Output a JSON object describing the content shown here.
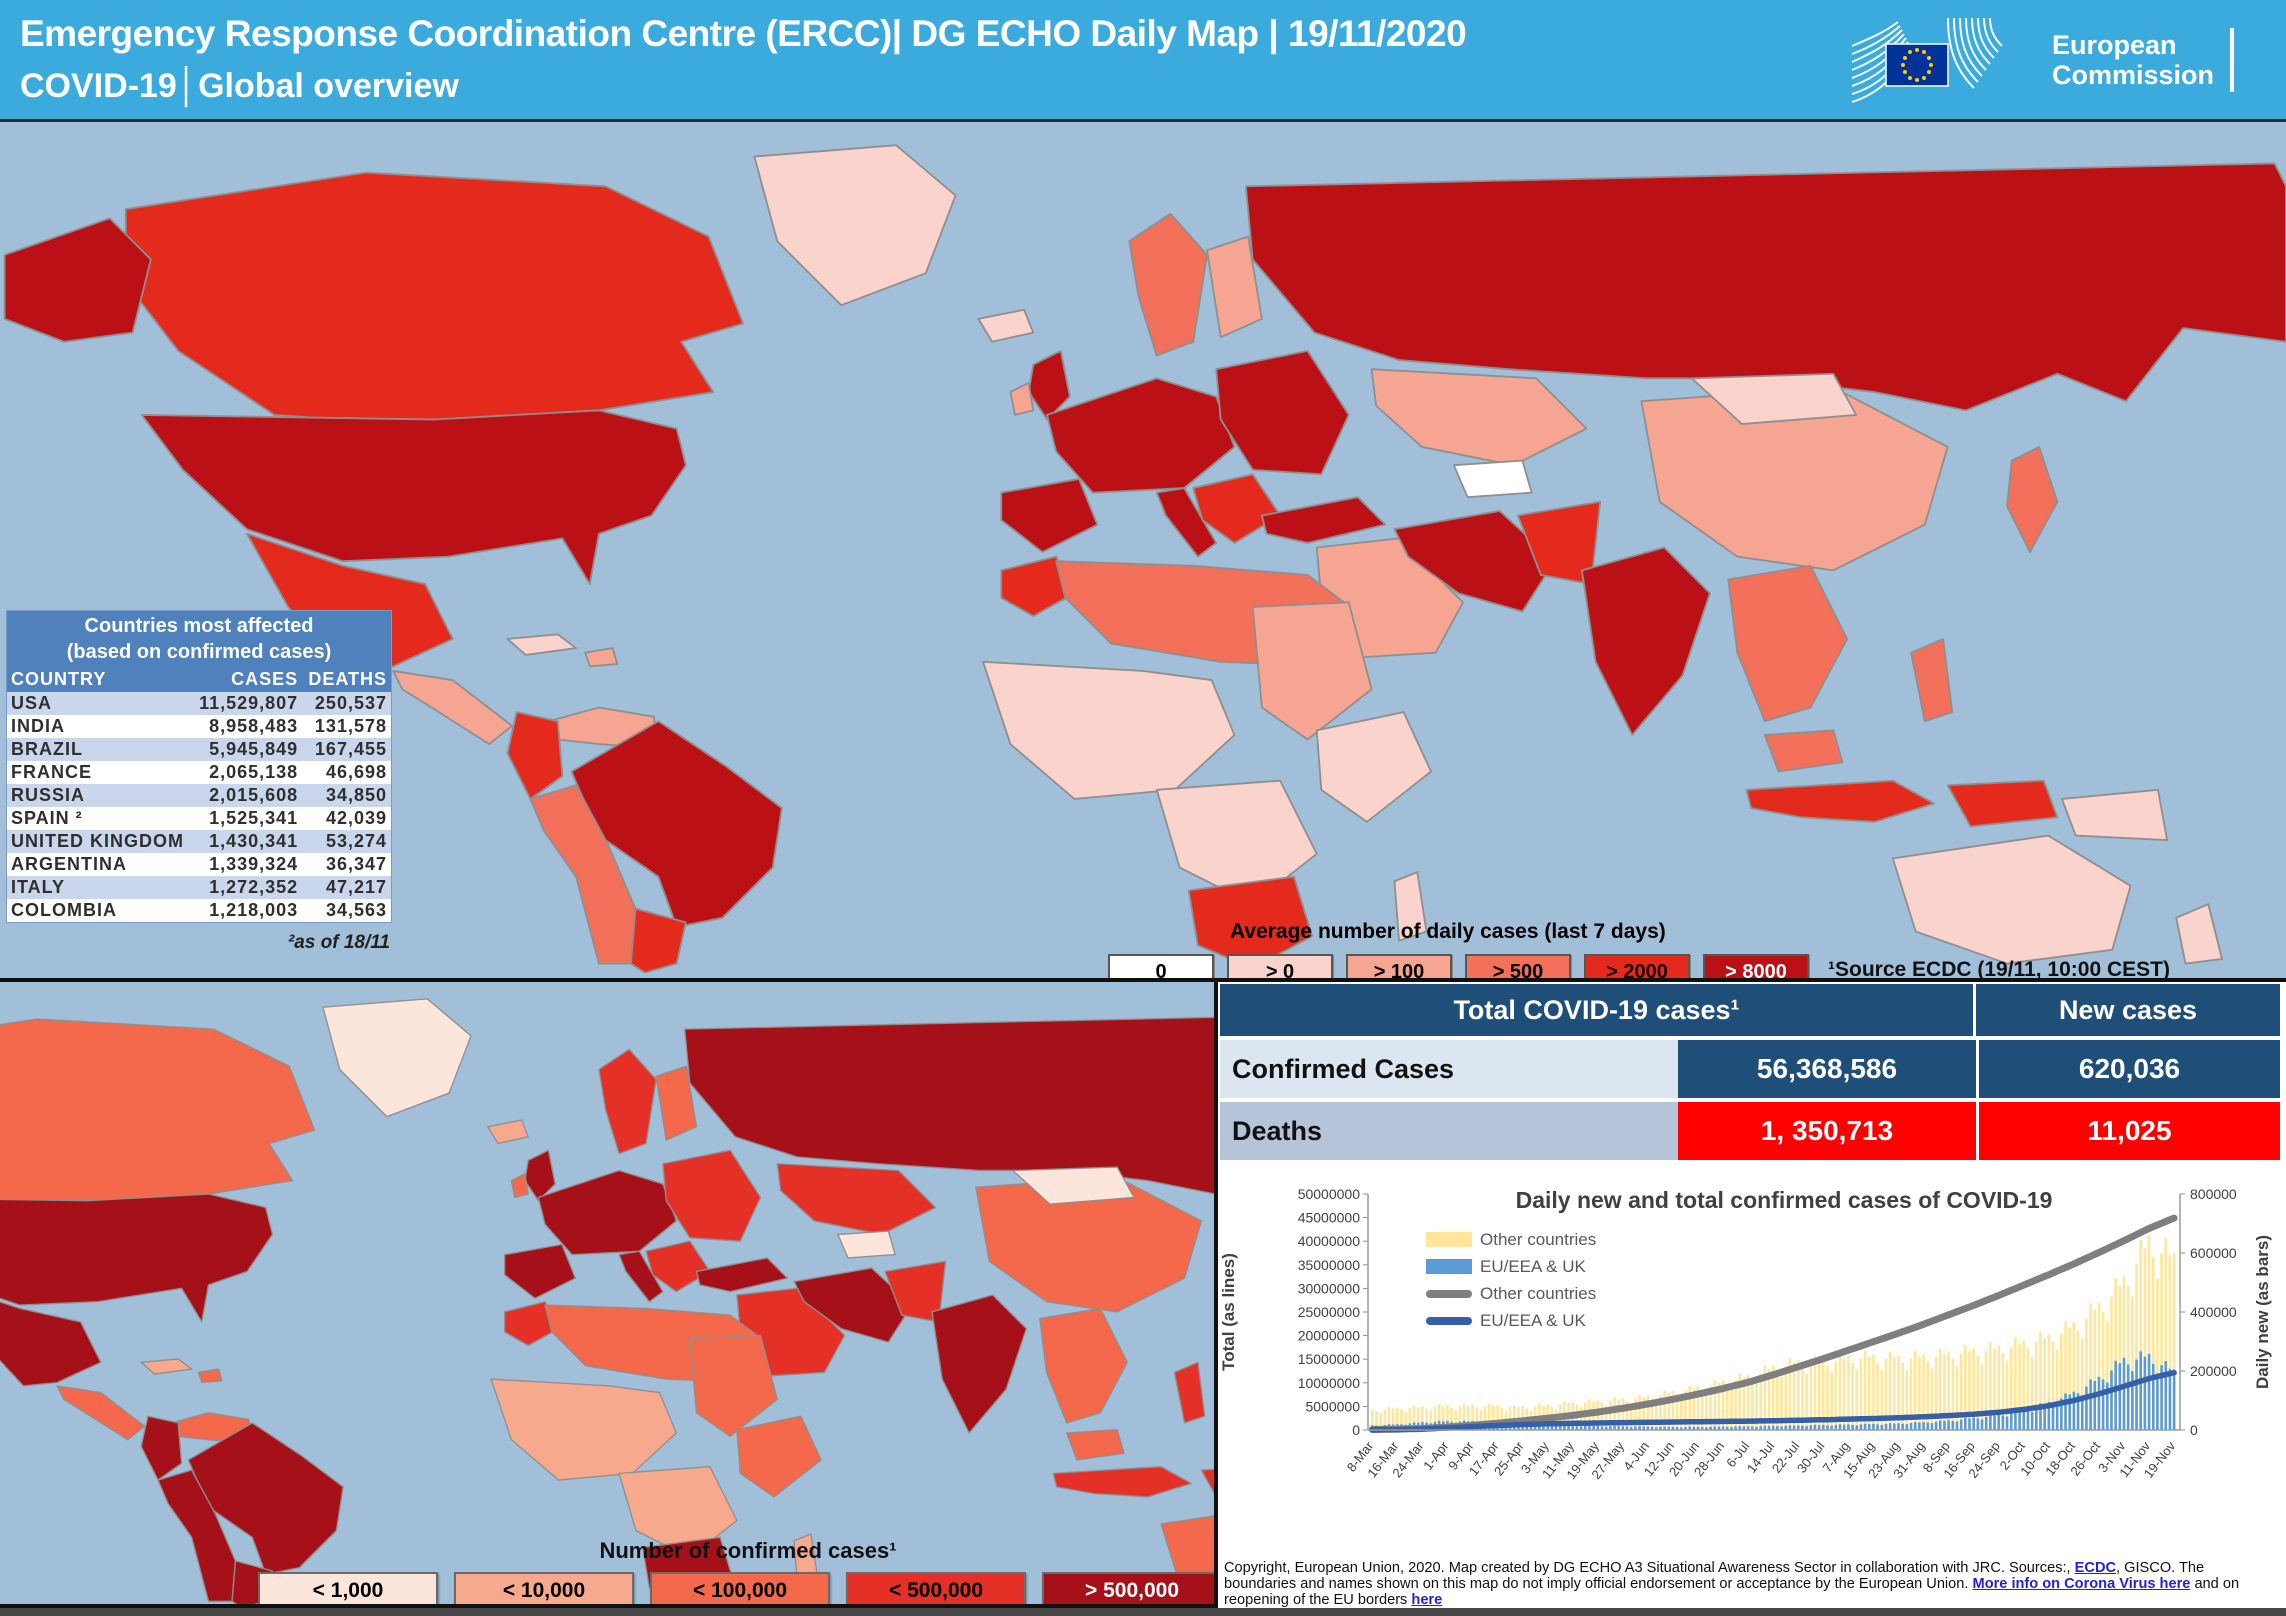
{
  "header": {
    "title_line1": "Emergency Response Coordination Centre (ERCC)| DG ECHO Daily Map | 19/11/2020",
    "title_line2": "COVID-19│Global overview",
    "logo_line1": "European",
    "logo_line2": "Commission"
  },
  "affected_table": {
    "title_line1": "Countries most affected",
    "title_line2": "(based on confirmed cases)",
    "columns": [
      "COUNTRY",
      "CASES",
      "DEATHS"
    ],
    "rows": [
      {
        "country": "USA",
        "cases": "11,529,807",
        "deaths": "250,537"
      },
      {
        "country": "INDIA",
        "cases": "8,958,483",
        "deaths": "131,578"
      },
      {
        "country": "BRAZIL",
        "cases": "5,945,849",
        "deaths": "167,455"
      },
      {
        "country": "FRANCE",
        "cases": "2,065,138",
        "deaths": "46,698"
      },
      {
        "country": "RUSSIA",
        "cases": "2,015,608",
        "deaths": "34,850"
      },
      {
        "country": "SPAIN ²",
        "cases": "1,525,341",
        "deaths": "42,039"
      },
      {
        "country": "UNITED KINGDOM",
        "cases": "1,430,341",
        "deaths": "53,274"
      },
      {
        "country": "ARGENTINA",
        "cases": "1,339,324",
        "deaths": "36,347"
      },
      {
        "country": "ITALY",
        "cases": "1,272,352",
        "deaths": "47,217"
      },
      {
        "country": "COLOMBIA",
        "cases": "1,218,003",
        "deaths": "34,563"
      }
    ],
    "footnote": "²as of 18/11"
  },
  "daily_legend": {
    "title": "Average number of daily cases (last 7 days)",
    "source": "¹Source ECDC  (19/11, 10:00 CEST)",
    "items": [
      {
        "label": "0",
        "color": "#ffffff",
        "text": "#000000"
      },
      {
        "label": "> 0",
        "color": "#fad3cc",
        "text": "#000000"
      },
      {
        "label": "> 100",
        "color": "#f6a592",
        "text": "#000000"
      },
      {
        "label": "> 500",
        "color": "#f3705a",
        "text": "#000000"
      },
      {
        "label": "> 2000",
        "color": "#e42a1c",
        "text": "#1a0000"
      },
      {
        "label": "> 8000",
        "color": "#bb1016",
        "text": "#ffffff"
      }
    ]
  },
  "cases_legend": {
    "title": "Number of confirmed cases¹",
    "items": [
      {
        "label": "< 1,000",
        "color": "#fce6dc",
        "text": "#000000"
      },
      {
        "label": "< 10,000",
        "color": "#f7a98e",
        "text": "#000000"
      },
      {
        "label": "< 100,000",
        "color": "#f4694b",
        "text": "#000000"
      },
      {
        "label": "< 500,000",
        "color": "#e43026",
        "text": "#000000"
      },
      {
        "label": "> 500,000",
        "color": "#a61018",
        "text": "#ffffff"
      }
    ]
  },
  "totals_table": {
    "header_left": "Total COVID-19 cases¹",
    "header_right": "New cases",
    "rows": [
      {
        "label": "Confirmed Cases",
        "total": "56,368,586",
        "new": "620,036",
        "label_bg": "#dce6f1",
        "value_bg": "#1f4e79"
      },
      {
        "label": "Deaths",
        "total": "1, 350,713",
        "new": "11,025",
        "label_bg": "#b6c4da",
        "value_bg": "#fe0000"
      }
    ]
  },
  "chart_data": {
    "type": "combo-bar-line",
    "title": "Daily new and total confirmed cases of COVID-19",
    "x_tick_labels": [
      "8-Mar",
      "16-Mar",
      "24-Mar",
      "1-Apr",
      "9-Apr",
      "17-Apr",
      "25-Apr",
      "3-May",
      "11-May",
      "19-May",
      "27-May",
      "4-Jun",
      "12-Jun",
      "20-Jun",
      "28-Jun",
      "6-Jul",
      "14-Jul",
      "22-Jul",
      "30-Jul",
      "7-Aug",
      "15-Aug",
      "23-Aug",
      "31-Aug",
      "8-Sep",
      "16-Sep",
      "24-Sep",
      "2-Oct",
      "10-Oct",
      "18-Oct",
      "26-Oct",
      "3-Nov",
      "11-Nov",
      "19-Nov"
    ],
    "axes": {
      "left_label": "Total (as lines)",
      "left_range": [
        0,
        50000000
      ],
      "left_tick_step": 5000000,
      "right_label": "Daily new (as bars)",
      "right_range": [
        0,
        800000
      ],
      "right_tick_step": 200000
    },
    "legend_position": "upper-left-inside",
    "series": [
      {
        "name": "Other countries",
        "type": "bar",
        "axis": "right",
        "color": "#ffe699",
        "values": [
          70000,
          76000,
          80000,
          84000,
          86000,
          83000,
          80000,
          86000,
          95000,
          101000,
          107000,
          116000,
          132000,
          148000,
          168000,
          188000,
          218000,
          238000,
          242000,
          252000,
          256000,
          252000,
          257000,
          266000,
          277000,
          287000,
          302000,
          325000,
          365000,
          430000,
          520000,
          660000,
          600000
        ]
      },
      {
        "name": "EU/EEA & UK",
        "type": "bar",
        "axis": "right",
        "color": "#5b9bd5",
        "values": [
          16000,
          20000,
          27000,
          31000,
          30000,
          28000,
          25000,
          21000,
          17000,
          14000,
          13000,
          12000,
          11000,
          11000,
          12000,
          13000,
          14500,
          16000,
          17500,
          19000,
          21000,
          23000,
          27000,
          33000,
          42000,
          52000,
          68000,
          95000,
          130000,
          180000,
          245000,
          258000,
          205000
        ]
      },
      {
        "name": "Other countries",
        "type": "line",
        "axis": "left",
        "color": "#7f7f7f",
        "values": [
          100000,
          180000,
          320000,
          620000,
          1000000,
          1450000,
          1950000,
          2500000,
          3100000,
          3800000,
          4600000,
          5500000,
          6500000,
          7600000,
          8800000,
          10100000,
          11700000,
          13400000,
          15100000,
          16900000,
          18700000,
          20500000,
          22400000,
          24400000,
          26400000,
          28500000,
          30700000,
          32900000,
          35200000,
          37600000,
          40100000,
          42700000,
          44900000
        ]
      },
      {
        "name": "EU/EEA & UK",
        "type": "line",
        "axis": "left",
        "color": "#3560a8",
        "values": [
          35000,
          90000,
          220000,
          430000,
          720000,
          960000,
          1160000,
          1310000,
          1410000,
          1490000,
          1560000,
          1630000,
          1690000,
          1750000,
          1810000,
          1880000,
          1960000,
          2060000,
          2170000,
          2300000,
          2440000,
          2600000,
          2800000,
          3050000,
          3350000,
          3750000,
          4350000,
          5150000,
          6250000,
          7650000,
          9250000,
          10900000,
          12150000
        ]
      }
    ]
  },
  "copyright": {
    "text1": "Copyright, European Union, 2020. Map created by DG ECHO A3 Situational Awareness Sector in collaboration with JRC.  Sources:, ",
    "link1": "ECDC",
    "text2": ", GISCO. The boundaries and names shown on this map do not imply official endorsement or acceptance  by the European Union.  ",
    "link2": "More info on Corona Virus here",
    "text3": " and on reopening of the EU borders ",
    "link3": "here"
  },
  "map_colors": {
    "ocean": "#a2bfd9",
    "border": "#8f8f8f",
    "daily_palette": [
      "#ffffff",
      "#fad3cc",
      "#f6a592",
      "#f3705a",
      "#e42a1c",
      "#bb1016"
    ],
    "cases_palette": [
      "#fce6dc",
      "#f7a98e",
      "#f4694b",
      "#e43026",
      "#a61018"
    ]
  },
  "top_map": {
    "palette": "daily_palette",
    "regions": {
      "russia": 5,
      "canada": 4,
      "greenland": 1,
      "alaska": 5,
      "usa": 5,
      "mexico": 4,
      "centralamerica": 2,
      "cuba": 1,
      "hispaniola": 2,
      "venezuela": 2,
      "colombia": 4,
      "brazil": 5,
      "andes": 3,
      "argentina": 4,
      "iceland": 1,
      "uk": 5,
      "ireland": 2,
      "scandinavia": 3,
      "finland": 2,
      "westeurope": 5,
      "iberia": 5,
      "italy": 5,
      "easteurope": 5,
      "balkans": 4,
      "turkey": 5,
      "centralasia": 2,
      "turkmenistan": 0,
      "iran": 5,
      "middleeast": 2,
      "morocco": 4,
      "northafrica": 3,
      "egypt_sudan": 2,
      "westafrica": 1,
      "centralafrica": 1,
      "eastafrica": 1,
      "southernafrica": 4,
      "madagascar": 1,
      "pakistan": 4,
      "india": 5,
      "china": 2,
      "mongolia": 1,
      "japan": 3,
      "seasia": 3,
      "malaysia": 3,
      "indonesia": 4,
      "indonesia2": 4,
      "philippines": 3,
      "png": 1,
      "australia": 1,
      "newzealand": 1
    }
  },
  "bottom_map": {
    "palette": "cases_palette",
    "regions": {
      "russia": 4,
      "canada": 2,
      "greenland": 0,
      "alaska": 4,
      "usa": 4,
      "mexico": 4,
      "centralamerica": 2,
      "cuba": 1,
      "hispaniola": 2,
      "venezuela": 2,
      "colombia": 4,
      "brazil": 4,
      "andes": 4,
      "argentina": 4,
      "iceland": 1,
      "uk": 4,
      "ireland": 2,
      "scandinavia": 3,
      "finland": 2,
      "westeurope": 4,
      "iberia": 4,
      "italy": 4,
      "easteurope": 3,
      "balkans": 3,
      "turkey": 4,
      "centralasia": 3,
      "turkmenistan": 0,
      "iran": 4,
      "middleeast": 3,
      "morocco": 3,
      "northafrica": 2,
      "egypt_sudan": 2,
      "westafrica": 1,
      "centralafrica": 1,
      "eastafrica": 2,
      "southernafrica": 4,
      "madagascar": 1,
      "pakistan": 3,
      "india": 4,
      "china": 2,
      "mongolia": 0,
      "japan": 3,
      "seasia": 2,
      "malaysia": 2,
      "indonesia": 3,
      "indonesia2": 3,
      "philippines": 3,
      "png": 1,
      "australia": 2,
      "newzealand": 1
    }
  }
}
